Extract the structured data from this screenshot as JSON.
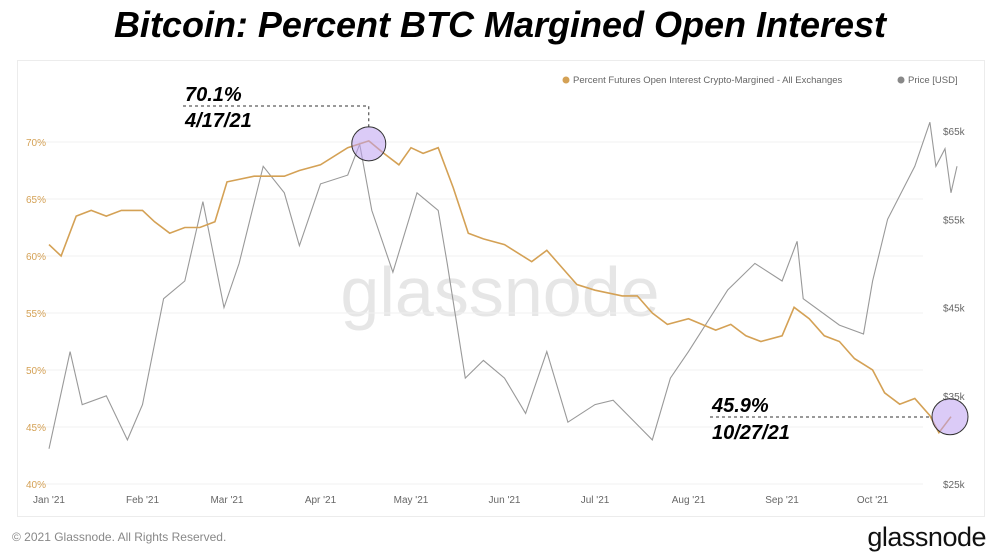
{
  "title": "Bitcoin: Percent BTC Margined Open Interest",
  "footer": {
    "copyright": "© 2021 Glassnode. All Rights Reserved.",
    "brand": "glassnode"
  },
  "watermark": "glassnode",
  "chart_data": {
    "type": "line",
    "title": "Bitcoin: Percent BTC Margined Open Interest",
    "legend_placement": "top-right",
    "grid": true,
    "x_ticks": [
      "Jan '21",
      "Feb '21",
      "Mar '21",
      "Apr '21",
      "May '21",
      "Jun '21",
      "Jul '21",
      "Aug '21",
      "Sep '21",
      "Oct '21"
    ],
    "x_tick_dates": [
      "2021-01-01",
      "2021-02-01",
      "2021-03-01",
      "2021-04-01",
      "2021-05-01",
      "2021-06-01",
      "2021-07-01",
      "2021-08-01",
      "2021-09-01",
      "2021-10-01"
    ],
    "xlim": [
      "2021-01-01",
      "2021-10-31"
    ],
    "y_left": {
      "ticks": [
        "40%",
        "45%",
        "50%",
        "55%",
        "60%",
        "65%",
        "70%"
      ],
      "lim": [
        40,
        73
      ],
      "color": "#d4a155"
    },
    "y_right": {
      "ticks": [
        "$25k",
        "$35k",
        "$45k",
        "$55k",
        "$65k"
      ],
      "lim": [
        25000,
        66500
      ],
      "color": "#555555"
    },
    "series": [
      {
        "name": "Percent Futures Open Interest Crypto-Margined - All Exchanges",
        "axis": "left",
        "color": "#d4a155",
        "x": [
          "2021-01-01",
          "2021-01-05",
          "2021-01-10",
          "2021-01-15",
          "2021-01-20",
          "2021-01-25",
          "2021-02-01",
          "2021-02-05",
          "2021-02-10",
          "2021-02-15",
          "2021-02-20",
          "2021-02-25",
          "2021-03-01",
          "2021-03-10",
          "2021-03-20",
          "2021-03-25",
          "2021-04-01",
          "2021-04-10",
          "2021-04-17",
          "2021-04-22",
          "2021-04-27",
          "2021-05-01",
          "2021-05-05",
          "2021-05-10",
          "2021-05-15",
          "2021-05-20",
          "2021-05-25",
          "2021-06-01",
          "2021-06-10",
          "2021-06-15",
          "2021-06-20",
          "2021-06-25",
          "2021-07-01",
          "2021-07-10",
          "2021-07-15",
          "2021-07-20",
          "2021-07-25",
          "2021-08-01",
          "2021-08-10",
          "2021-08-15",
          "2021-08-20",
          "2021-08-25",
          "2021-09-01",
          "2021-09-05",
          "2021-09-10",
          "2021-09-15",
          "2021-09-20",
          "2021-09-25",
          "2021-10-01",
          "2021-10-05",
          "2021-10-10",
          "2021-10-15",
          "2021-10-20",
          "2021-10-23",
          "2021-10-27"
        ],
        "values": [
          61,
          60,
          63.5,
          64,
          63.5,
          64,
          64,
          63,
          62,
          62.5,
          62.5,
          63,
          66.5,
          67,
          67,
          67.5,
          68,
          69.5,
          70.1,
          69,
          68,
          69.5,
          69,
          69.5,
          66,
          62,
          61.5,
          61,
          59.5,
          60.5,
          59,
          57.5,
          57,
          56.5,
          56.5,
          55,
          54,
          54.5,
          53.5,
          54,
          53,
          52.5,
          53,
          55.5,
          54.5,
          53,
          52.5,
          51,
          50,
          48,
          47,
          47.5,
          46,
          44.5,
          45.9
        ]
      },
      {
        "name": "Price [USD]",
        "axis": "right",
        "color": "#999999",
        "x": [
          "2021-01-01",
          "2021-01-08",
          "2021-01-12",
          "2021-01-20",
          "2021-01-27",
          "2021-02-01",
          "2021-02-08",
          "2021-02-15",
          "2021-02-21",
          "2021-02-28",
          "2021-03-05",
          "2021-03-13",
          "2021-03-20",
          "2021-03-25",
          "2021-04-01",
          "2021-04-10",
          "2021-04-14",
          "2021-04-18",
          "2021-04-25",
          "2021-05-03",
          "2021-05-10",
          "2021-05-13",
          "2021-05-19",
          "2021-05-25",
          "2021-06-01",
          "2021-06-08",
          "2021-06-15",
          "2021-06-22",
          "2021-07-01",
          "2021-07-07",
          "2021-07-20",
          "2021-07-26",
          "2021-08-01",
          "2021-08-14",
          "2021-08-23",
          "2021-09-01",
          "2021-09-06",
          "2021-09-08",
          "2021-09-20",
          "2021-09-28",
          "2021-10-01",
          "2021-10-06",
          "2021-10-15",
          "2021-10-20",
          "2021-10-22",
          "2021-10-25",
          "2021-10-27",
          "2021-10-29"
        ],
        "values": [
          29000,
          40000,
          34000,
          35000,
          30000,
          34000,
          46000,
          48000,
          57000,
          45000,
          50000,
          61000,
          58000,
          52000,
          59000,
          60000,
          63500,
          56000,
          49000,
          58000,
          56000,
          50000,
          37000,
          39000,
          37000,
          33000,
          40000,
          32000,
          34000,
          34500,
          30000,
          37000,
          40000,
          47000,
          50000,
          48000,
          52500,
          46000,
          43000,
          42000,
          48000,
          55000,
          61000,
          66000,
          61000,
          63000,
          58000,
          61000
        ]
      }
    ],
    "annotations": [
      {
        "value": "70.1%",
        "date": "4/17/21",
        "x": "2021-04-17",
        "y": 70.1
      },
      {
        "value": "45.9%",
        "date": "10/27/21",
        "x": "2021-10-27",
        "y": 45.9
      }
    ]
  }
}
